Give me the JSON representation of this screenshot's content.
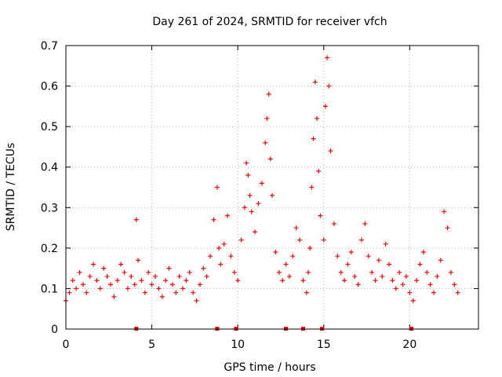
{
  "chart_data": {
    "type": "scatter",
    "title": "Day 261 of 2024, SRMTID for receiver vfch",
    "xlabel": "GPS time / hours",
    "ylabel": "SRMTID / TECUs",
    "xlim": [
      0,
      24
    ],
    "ylim": [
      0,
      0.7
    ],
    "xticks": [
      0,
      5,
      10,
      15,
      20
    ],
    "yticks": [
      0,
      0.1,
      0.2,
      0.3,
      0.4,
      0.5,
      0.6,
      0.7
    ],
    "grid": true,
    "marker": "+",
    "color": "#ff0000",
    "series": [
      {
        "name": "SRMTID",
        "x": [
          0.0,
          0.2,
          0.4,
          0.6,
          0.8,
          1.0,
          1.2,
          1.4,
          1.6,
          1.8,
          2.0,
          2.2,
          2.4,
          2.6,
          2.8,
          3.0,
          3.2,
          3.4,
          3.6,
          3.8,
          4.0,
          4.1,
          4.2,
          4.4,
          4.6,
          4.8,
          5.0,
          5.2,
          5.4,
          5.6,
          5.8,
          6.0,
          6.2,
          6.4,
          6.6,
          6.8,
          7.0,
          7.2,
          7.4,
          7.6,
          7.8,
          8.0,
          8.2,
          8.4,
          8.6,
          8.8,
          8.9,
          9.0,
          9.2,
          9.4,
          9.6,
          9.8,
          10.0,
          10.2,
          10.4,
          10.5,
          10.6,
          10.7,
          10.8,
          11.0,
          11.2,
          11.4,
          11.6,
          11.7,
          11.8,
          11.9,
          12.0,
          12.2,
          12.4,
          12.6,
          12.8,
          13.0,
          13.2,
          13.4,
          13.6,
          13.8,
          14.0,
          14.1,
          14.2,
          14.3,
          14.4,
          14.5,
          14.6,
          14.7,
          14.8,
          15.0,
          15.1,
          15.2,
          15.3,
          15.4,
          15.6,
          15.8,
          16.0,
          16.2,
          16.4,
          16.6,
          16.8,
          17.0,
          17.2,
          17.4,
          17.6,
          17.8,
          18.0,
          18.2,
          18.4,
          18.6,
          18.8,
          19.0,
          19.2,
          19.4,
          19.6,
          19.8,
          20.0,
          20.2,
          20.4,
          20.6,
          20.8,
          21.0,
          21.2,
          21.4,
          21.6,
          21.8,
          22.0,
          22.2,
          22.4,
          22.6,
          22.8
        ],
        "y": [
          0.07,
          0.09,
          0.12,
          0.1,
          0.14,
          0.11,
          0.09,
          0.13,
          0.16,
          0.12,
          0.1,
          0.15,
          0.13,
          0.11,
          0.08,
          0.12,
          0.16,
          0.14,
          0.1,
          0.13,
          0.11,
          0.27,
          0.17,
          0.12,
          0.09,
          0.14,
          0.11,
          0.13,
          0.1,
          0.08,
          0.12,
          0.15,
          0.11,
          0.09,
          0.13,
          0.1,
          0.12,
          0.14,
          0.09,
          0.07,
          0.11,
          0.15,
          0.13,
          0.18,
          0.27,
          0.35,
          0.2,
          0.16,
          0.21,
          0.28,
          0.18,
          0.14,
          0.12,
          0.22,
          0.3,
          0.41,
          0.38,
          0.33,
          0.29,
          0.24,
          0.31,
          0.36,
          0.46,
          0.52,
          0.58,
          0.42,
          0.33,
          0.19,
          0.14,
          0.12,
          0.16,
          0.13,
          0.18,
          0.25,
          0.22,
          0.12,
          0.09,
          0.14,
          0.2,
          0.35,
          0.47,
          0.61,
          0.52,
          0.39,
          0.28,
          0.22,
          0.55,
          0.67,
          0.6,
          0.44,
          0.26,
          0.18,
          0.14,
          0.12,
          0.16,
          0.19,
          0.13,
          0.11,
          0.22,
          0.26,
          0.18,
          0.14,
          0.12,
          0.17,
          0.13,
          0.21,
          0.16,
          0.12,
          0.1,
          0.14,
          0.11,
          0.13,
          0.09,
          0.07,
          0.12,
          0.16,
          0.19,
          0.14,
          0.11,
          0.09,
          0.13,
          0.17,
          0.29,
          0.25,
          0.14,
          0.11,
          0.09
        ]
      }
    ],
    "day_markers_x": [
      4.1,
      8.8,
      9.9,
      12.8,
      13.8,
      14.9,
      20.1
    ]
  }
}
